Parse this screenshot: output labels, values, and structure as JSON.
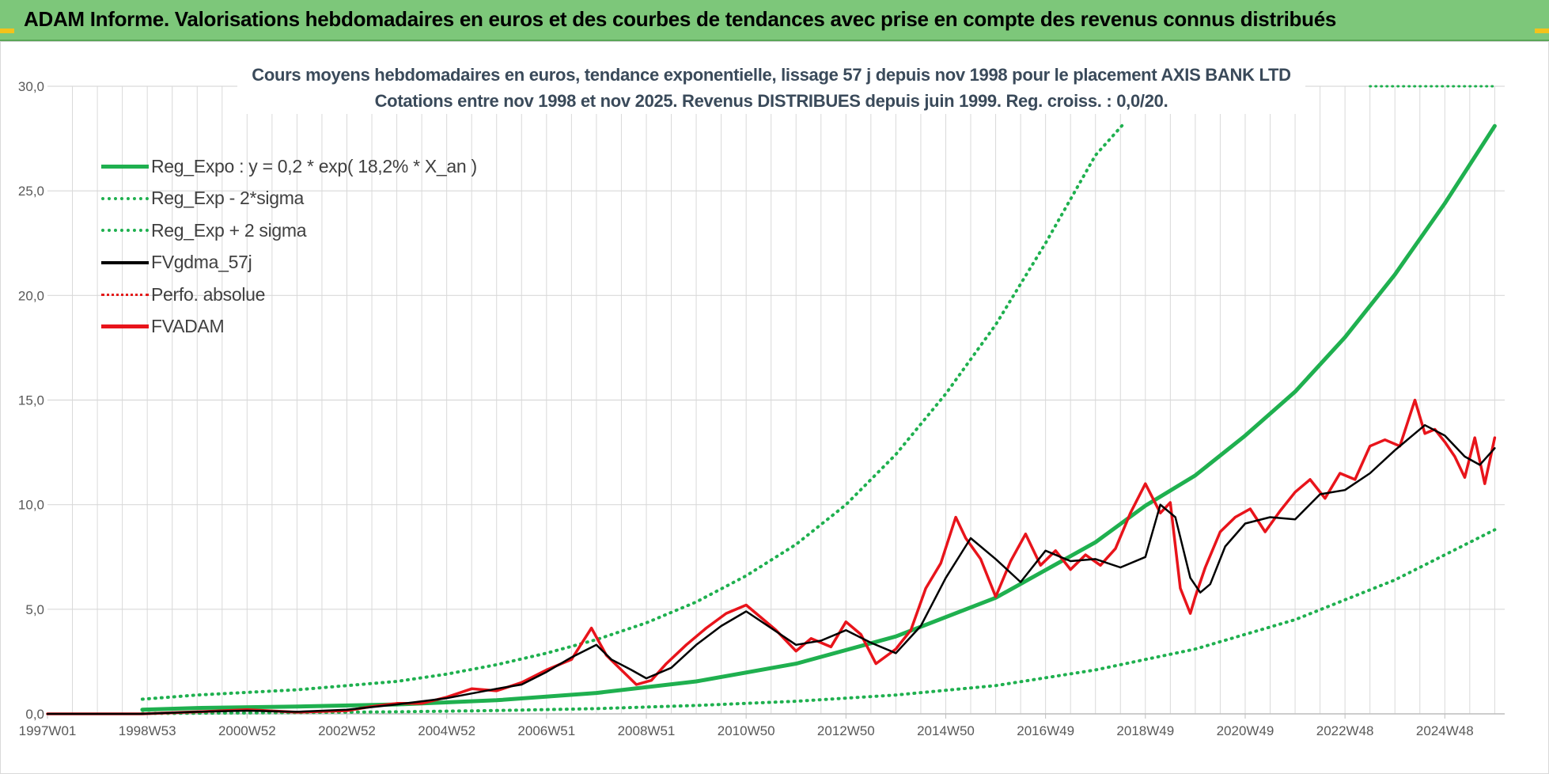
{
  "banner": {
    "title": "ADAM Informe. Valorisations hebdomadaires en euros et des courbes de tendances avec prise en compte des revenus connus distribués"
  },
  "colors": {
    "banner_bg": "#7dc77a",
    "reg_expo": "#1fb04f",
    "sigma": "#1fb04f",
    "fvgdma": "#000000",
    "perfo": "#e41a1a",
    "fvadam": "#e8141b",
    "grid": "#d9d9d9"
  },
  "chart_data": {
    "type": "line",
    "title_line1": "Cours moyens hebdomadaires en euros, tendance exponentielle, lissage 57 j depuis nov 1998 pour le placement AXIS BANK LTD",
    "title_line2": "Cotations entre nov 1998 et nov 2025. Revenus DISTRIBUES depuis juin 1999. Reg. croiss. : 0,0/20.",
    "x_tick_labels": [
      "1997W01",
      "1998W53",
      "2000W52",
      "2002W52",
      "2004W52",
      "2006W51",
      "2008W51",
      "2010W50",
      "2012W50",
      "2014W50",
      "2016W49",
      "2018W49",
      "2020W49",
      "2022W48",
      "2024W48"
    ],
    "x_tick_years": [
      1997.0,
      1999.0,
      2001.0,
      2003.0,
      2005.0,
      2007.0,
      2009.0,
      2011.0,
      2013.0,
      2015.0,
      2017.0,
      2019.0,
      2021.0,
      2023.0,
      2025.0
    ],
    "x_range": [
      1997.0,
      2026.2
    ],
    "y_tick_labels": [
      "0,0",
      "5,0",
      "10,0",
      "15,0",
      "20,0",
      "25,0",
      "30,0"
    ],
    "y_ticks": [
      0,
      5,
      10,
      15,
      20,
      25,
      30
    ],
    "ylim": [
      0,
      30
    ],
    "grid": true,
    "legend_position": "top-left",
    "legend": [
      {
        "key": "reg_expo",
        "label": "Reg_Expo : y = 0,2 * exp( 18,2% *  X_an )",
        "style": "solid-thick",
        "color": "#1fb04f"
      },
      {
        "key": "reg_minus",
        "label": "Reg_Exp - 2*sigma",
        "style": "dotted",
        "color": "#1fb04f"
      },
      {
        "key": "reg_plus",
        "label": "Reg_Exp + 2 sigma",
        "style": "dotted",
        "color": "#1fb04f"
      },
      {
        "key": "fvgdma",
        "label": "FVgdma_57j",
        "style": "solid",
        "color": "#000000"
      },
      {
        "key": "perfo",
        "label": "Perfo. absolue",
        "style": "dotted",
        "color": "#e41a1a"
      },
      {
        "key": "fvadam",
        "label": "FVADAM",
        "style": "solid-thick",
        "color": "#e8141b"
      }
    ],
    "series": [
      {
        "key": "reg_expo",
        "x": [
          1998.9,
          2000,
          2002,
          2004,
          2006,
          2008,
          2010,
          2012,
          2014,
          2016,
          2018,
          2019,
          2020,
          2021,
          2022,
          2023,
          2024,
          2025,
          2026.0
        ],
        "y": [
          0.2,
          0.28,
          0.35,
          0.45,
          0.65,
          1.0,
          1.55,
          2.4,
          3.7,
          5.55,
          8.2,
          9.95,
          11.4,
          13.3,
          15.4,
          18.0,
          21.0,
          24.4,
          28.1
        ]
      },
      {
        "key": "reg_minus",
        "x": [
          1998.9,
          2000,
          2002,
          2004,
          2006,
          2008,
          2010,
          2012,
          2014,
          2016,
          2018,
          2020,
          2022,
          2024,
          2026.0
        ],
        "y": [
          0.02,
          0.03,
          0.06,
          0.1,
          0.16,
          0.25,
          0.4,
          0.6,
          0.9,
          1.35,
          2.1,
          3.1,
          4.5,
          6.4,
          8.8
        ]
      },
      {
        "key": "reg_plus",
        "x": [
          1998.9,
          2000,
          2002,
          2004,
          2005,
          2006,
          2007,
          2008,
          2009,
          2010,
          2011,
          2012,
          2013,
          2014,
          2015,
          2016,
          2017,
          2018,
          2018.6
        ],
        "y": [
          0.7,
          0.9,
          1.15,
          1.55,
          1.9,
          2.35,
          2.9,
          3.55,
          4.35,
          5.35,
          6.6,
          8.1,
          10.0,
          12.4,
          15.3,
          18.6,
          22.5,
          26.7,
          28.3
        ]
      },
      {
        "key": "plus_ceiling",
        "x": [
          2023.5,
          2026.0
        ],
        "y": [
          30,
          30
        ]
      },
      {
        "key": "fvgdma",
        "x": [
          1997.0,
          1998.9,
          2000.0,
          2001.0,
          2002.0,
          2003.0,
          2004.0,
          2005.0,
          2006.0,
          2006.5,
          2007.0,
          2007.5,
          2008.0,
          2008.3,
          2008.7,
          2009.0,
          2009.5,
          2010.0,
          2010.5,
          2011.0,
          2011.5,
          2012.0,
          2012.5,
          2013.0,
          2013.5,
          2014.0,
          2014.5,
          2015.0,
          2015.5,
          2016.0,
          2016.5,
          2017.0,
          2017.5,
          2018.0,
          2018.5,
          2019.0,
          2019.3,
          2019.6,
          2019.9,
          2020.1,
          2020.3,
          2020.6,
          2021.0,
          2021.5,
          2022.0,
          2022.5,
          2023.0,
          2023.5,
          2024.0,
          2024.3,
          2024.6,
          2025.0,
          2025.4,
          2025.7,
          2026.0
        ],
        "y": [
          0.0,
          0.0,
          0.1,
          0.15,
          0.1,
          0.2,
          0.45,
          0.75,
          1.2,
          1.4,
          2.0,
          2.7,
          3.3,
          2.6,
          2.1,
          1.7,
          2.2,
          3.3,
          4.2,
          4.9,
          4.1,
          3.3,
          3.5,
          4.0,
          3.4,
          2.9,
          4.2,
          6.5,
          8.4,
          7.4,
          6.3,
          7.8,
          7.3,
          7.4,
          7.0,
          7.5,
          10.0,
          9.4,
          6.5,
          5.8,
          6.2,
          8.0,
          9.1,
          9.4,
          9.3,
          10.5,
          10.7,
          11.5,
          12.6,
          13.2,
          13.8,
          13.3,
          12.3,
          11.9,
          12.7
        ]
      },
      {
        "key": "fvadam",
        "x": [
          1997.0,
          1998.9,
          2000.0,
          2001.0,
          2002.0,
          2003.0,
          2003.5,
          2004.0,
          2004.5,
          2005.0,
          2005.5,
          2006.0,
          2006.5,
          2007.0,
          2007.5,
          2007.9,
          2008.2,
          2008.5,
          2008.8,
          2009.1,
          2009.4,
          2009.8,
          2010.2,
          2010.6,
          2011.0,
          2011.3,
          2011.6,
          2012.0,
          2012.3,
          2012.7,
          2013.0,
          2013.3,
          2013.6,
          2014.0,
          2014.3,
          2014.6,
          2014.9,
          2015.2,
          2015.4,
          2015.7,
          2016.0,
          2016.3,
          2016.6,
          2016.9,
          2017.2,
          2017.5,
          2017.8,
          2018.1,
          2018.4,
          2018.7,
          2019.0,
          2019.3,
          2019.5,
          2019.7,
          2019.9,
          2020.0,
          2020.2,
          2020.5,
          2020.8,
          2021.1,
          2021.4,
          2021.7,
          2022.0,
          2022.3,
          2022.6,
          2022.9,
          2023.2,
          2023.5,
          2023.8,
          2024.1,
          2024.4,
          2024.6,
          2024.8,
          2025.0,
          2025.2,
          2025.4,
          2025.6,
          2025.8,
          2026.0
        ],
        "y": [
          0.0,
          0.0,
          0.1,
          0.2,
          0.08,
          0.15,
          0.35,
          0.5,
          0.5,
          0.8,
          1.2,
          1.1,
          1.5,
          2.1,
          2.6,
          4.1,
          2.8,
          2.1,
          1.4,
          1.6,
          2.4,
          3.3,
          4.1,
          4.8,
          5.2,
          4.6,
          4.0,
          3.0,
          3.6,
          3.2,
          4.4,
          3.8,
          2.4,
          3.1,
          4.0,
          6.0,
          7.2,
          9.4,
          8.4,
          7.4,
          5.6,
          7.3,
          8.6,
          7.1,
          7.8,
          6.9,
          7.6,
          7.1,
          7.9,
          9.6,
          11.0,
          9.6,
          10.1,
          6.0,
          4.8,
          5.6,
          7.0,
          8.7,
          9.4,
          9.8,
          8.7,
          9.7,
          10.6,
          11.2,
          10.3,
          11.5,
          11.2,
          12.8,
          13.1,
          12.8,
          15.0,
          13.4,
          13.6,
          13.0,
          12.3,
          11.3,
          13.2,
          11.0,
          13.2
        ]
      }
    ]
  }
}
